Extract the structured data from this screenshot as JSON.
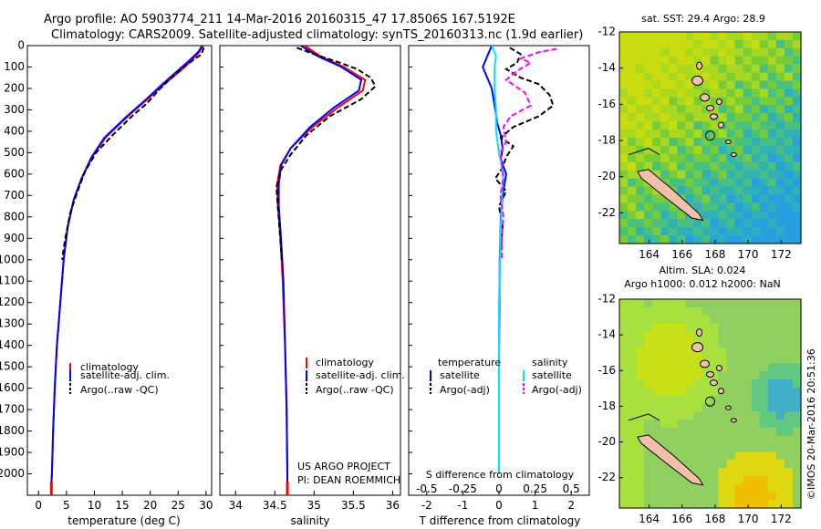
{
  "header": {
    "line1": "Argo profile: AO 5903774_211 14-Mar-2016 20160315_47 17.8506S 167.5192E",
    "line2": "Climatology: CARS2009. Satellite-adjusted climatology: synTS_20160313.nc (1.9d earlier)"
  },
  "colors": {
    "climatology": "#ff0000",
    "satellite": "#0000ff",
    "argo": "#000000",
    "salinity_satellite": "#00e5ff",
    "salinity_argo": "#ff00ff"
  },
  "chart_data": [
    {
      "type": "line",
      "name": "temperature-profile",
      "xlabel": "temperature (deg C)",
      "ylabel": "",
      "xlim": [
        -2,
        31
      ],
      "ylim": [
        2100,
        0
      ],
      "xticks": [
        "0",
        "5",
        "10",
        "15",
        "20",
        "25",
        "30"
      ],
      "yticks": [
        "0",
        "100",
        "200",
        "300",
        "400",
        "500",
        "600",
        "700",
        "800",
        "900",
        "1000",
        "1100",
        "1200",
        "1300",
        "1400",
        "1500",
        "1600",
        "1700",
        "1800",
        "1900",
        "2000"
      ],
      "legend": [
        "climatology",
        "satellite-adj. clim.",
        "Argo(..raw -QC)"
      ],
      "series": [
        {
          "name": "climatology",
          "style": "solid",
          "points": [
            [
              29.5,
              0
            ],
            [
              28.8,
              30
            ],
            [
              27.4,
              70
            ],
            [
              25.3,
              120
            ],
            [
              22.5,
              180
            ],
            [
              19.5,
              250
            ],
            [
              16,
              330
            ],
            [
              12,
              430
            ],
            [
              9.6,
              520
            ],
            [
              7.7,
              620
            ],
            [
              6.3,
              720
            ],
            [
              5.2,
              850
            ],
            [
              4.5,
              1000
            ],
            [
              3.9,
              1200
            ],
            [
              3.3,
              1400
            ],
            [
              2.9,
              1600
            ],
            [
              2.6,
              1800
            ],
            [
              2.4,
              2000
            ],
            [
              2.3,
              2050
            ]
          ]
        },
        {
          "name": "satellite-adj. clim.",
          "style": "solid",
          "points": [
            [
              29.3,
              0
            ],
            [
              28.6,
              30
            ],
            [
              27,
              70
            ],
            [
              24.8,
              120
            ],
            [
              22.2,
              180
            ],
            [
              19.3,
              250
            ],
            [
              15.8,
              330
            ],
            [
              11.8,
              430
            ],
            [
              9.5,
              520
            ],
            [
              7.7,
              620
            ],
            [
              6.3,
              720
            ],
            [
              5.2,
              850
            ],
            [
              4.5,
              1000
            ],
            [
              3.9,
              1200
            ],
            [
              3.3,
              1400
            ],
            [
              2.9,
              1600
            ],
            [
              2.6,
              1800
            ],
            [
              2.4,
              2000
            ],
            [
              2.3,
              2050
            ]
          ]
        },
        {
          "name": "Argo(..raw -QC)",
          "style": "dashed",
          "points": [
            [
              29.6,
              10
            ],
            [
              29.2,
              40
            ],
            [
              26.5,
              90
            ],
            [
              24.2,
              140
            ],
            [
              21.8,
              200
            ],
            [
              19.4,
              270
            ],
            [
              16.7,
              330
            ],
            [
              13.2,
              420
            ],
            [
              10.3,
              500
            ],
            [
              8.3,
              590
            ],
            [
              7,
              680
            ],
            [
              5.7,
              780
            ],
            [
              4.8,
              900
            ],
            [
              4.2,
              1000
            ]
          ]
        }
      ]
    },
    {
      "type": "line",
      "name": "salinity-profile",
      "xlabel": "salinity",
      "xlim": [
        33.8,
        36.1
      ],
      "ylim": [
        2100,
        0
      ],
      "xticks": [
        "34",
        "34.5",
        "35",
        "35.5",
        "36"
      ],
      "legend": [
        "climatology",
        "satellite-adj. clim.",
        "Argo(..raw -QC)"
      ],
      "annotations": [
        "US ARGO PROJECT",
        "PI: DEAN ROEMMICH"
      ],
      "series": [
        {
          "name": "climatology",
          "style": "solid",
          "points": [
            [
              34.88,
              0
            ],
            [
              35.08,
              50
            ],
            [
              35.38,
              100
            ],
            [
              35.65,
              160
            ],
            [
              35.62,
              210
            ],
            [
              35.3,
              290
            ],
            [
              34.98,
              380
            ],
            [
              34.7,
              480
            ],
            [
              34.57,
              560
            ],
            [
              34.53,
              650
            ],
            [
              34.54,
              750
            ],
            [
              34.57,
              900
            ],
            [
              34.6,
              1100
            ],
            [
              34.63,
              1400
            ],
            [
              34.65,
              1700
            ],
            [
              34.66,
              2000
            ],
            [
              34.66,
              2050
            ]
          ]
        },
        {
          "name": "satellite-adj. clim.",
          "style": "solid",
          "points": [
            [
              34.83,
              0
            ],
            [
              35.05,
              50
            ],
            [
              35.35,
              100
            ],
            [
              35.6,
              160
            ],
            [
              35.57,
              210
            ],
            [
              35.25,
              290
            ],
            [
              34.95,
              380
            ],
            [
              34.7,
              480
            ],
            [
              34.58,
              560
            ],
            [
              34.55,
              650
            ],
            [
              34.55,
              750
            ],
            [
              34.58,
              900
            ],
            [
              34.61,
              1100
            ],
            [
              34.63,
              1400
            ],
            [
              34.65,
              1700
            ],
            [
              34.66,
              2000
            ],
            [
              34.66,
              2050
            ]
          ]
        },
        {
          "name": "Argo(..raw -QC)",
          "style": "dashed",
          "points": [
            [
              34.78,
              10
            ],
            [
              35.0,
              40
            ],
            [
              35.33,
              80
            ],
            [
              35.55,
              110
            ],
            [
              35.72,
              150
            ],
            [
              35.78,
              190
            ],
            [
              35.6,
              250
            ],
            [
              35.2,
              330
            ],
            [
              34.9,
              420
            ],
            [
              34.7,
              510
            ],
            [
              34.58,
              580
            ],
            [
              34.52,
              660
            ],
            [
              34.54,
              760
            ],
            [
              34.57,
              900
            ],
            [
              34.59,
              1000
            ]
          ]
        }
      ]
    },
    {
      "type": "line",
      "name": "difference-profile",
      "xlabel": "T difference from climatology",
      "xlabel_top": "S difference from climatology",
      "xlim_T": [
        -2.5,
        2.5
      ],
      "xticks_T": [
        "-2",
        "-1",
        "0",
        "1",
        "2"
      ],
      "xticks_S": [
        "-0.5",
        "-0.25",
        "0",
        "0.25",
        "0.5"
      ],
      "ylim": [
        2100,
        0
      ],
      "legend_headers": [
        "temperature",
        "salinity"
      ],
      "legend": [
        "satellite",
        "Argo(-adj)",
        "satellite",
        "Argo(-adj)"
      ],
      "series": [
        {
          "name": "temperature satellite",
          "variable": "T",
          "style": "solid",
          "points": [
            [
              -0.2,
              0
            ],
            [
              -0.3,
              40
            ],
            [
              -0.45,
              100
            ],
            [
              -0.2,
              200
            ],
            [
              -0.1,
              300
            ],
            [
              -0.05,
              360
            ],
            [
              0.05,
              420
            ],
            [
              0.1,
              480
            ],
            [
              0.05,
              530
            ],
            [
              0.2,
              600
            ],
            [
              0.1,
              700
            ],
            [
              0.05,
              800
            ],
            [
              0.02,
              1000
            ],
            [
              0,
              1500
            ],
            [
              0,
              2000
            ]
          ]
        },
        {
          "name": "temperature Argo(-adj)",
          "variable": "T",
          "style": "dashed",
          "points": [
            [
              0.3,
              10
            ],
            [
              0.6,
              40
            ],
            [
              0.5,
              80
            ],
            [
              0.2,
              110
            ],
            [
              0.6,
              150
            ],
            [
              1.1,
              180
            ],
            [
              1.4,
              230
            ],
            [
              1.5,
              280
            ],
            [
              1.1,
              330
            ],
            [
              0.4,
              380
            ],
            [
              0.05,
              430
            ],
            [
              0.4,
              470
            ],
            [
              0.2,
              520
            ],
            [
              0.1,
              570
            ],
            [
              -0.1,
              620
            ],
            [
              0.2,
              680
            ],
            [
              0,
              750
            ],
            [
              0.1,
              850
            ],
            [
              0.02,
              1000
            ]
          ]
        },
        {
          "name": "salinity satellite",
          "variable": "S",
          "style": "solid",
          "points": [
            [
              -0.05,
              0
            ],
            [
              -0.02,
              50
            ],
            [
              -0.03,
              100
            ],
            [
              -0.03,
              200
            ],
            [
              -0.02,
              300
            ],
            [
              -0.02,
              400
            ],
            [
              0,
              500
            ],
            [
              0.03,
              600
            ],
            [
              0.02,
              700
            ],
            [
              0.01,
              900
            ],
            [
              0,
              1200
            ],
            [
              0,
              1500
            ],
            [
              0,
              2000
            ]
          ]
        },
        {
          "name": "salinity Argo(-adj)",
          "variable": "S",
          "style": "dashed",
          "points": [
            [
              0.4,
              15
            ],
            [
              0.28,
              30
            ],
            [
              0.15,
              60
            ],
            [
              0.22,
              80
            ],
            [
              0.12,
              120
            ],
            [
              0.05,
              160
            ],
            [
              0.18,
              220
            ],
            [
              0.22,
              280
            ],
            [
              0.08,
              330
            ],
            [
              0.03,
              380
            ],
            [
              0.05,
              450
            ],
            [
              0.01,
              500
            ],
            [
              0.02,
              560
            ],
            [
              0.03,
              620
            ],
            [
              0.01,
              700
            ],
            [
              0.03,
              800
            ],
            [
              0.02,
              900
            ],
            [
              0.02,
              1000
            ]
          ]
        }
      ]
    }
  ],
  "maps": {
    "top": {
      "title": "sat. SST: 29.4 Argo: 28.9",
      "xticks": [
        "164",
        "166",
        "168",
        "170",
        "172"
      ],
      "yticks": [
        "-12",
        "-14",
        "-16",
        "-18",
        "-20",
        "-22"
      ],
      "colors": [
        "#c8dc10",
        "#a8d820",
        "#78cc38",
        "#48c080",
        "#30b0b8",
        "#28a0e0"
      ]
    },
    "bottom": {
      "title1": "Altim. SLA: 0.024",
      "title2": "Argo h1000: 0.012 h2000: NaN",
      "xticks": [
        "164",
        "166",
        "168",
        "170",
        "172"
      ],
      "yticks": [
        "-12",
        "-14",
        "-16",
        "-18",
        "-20",
        "-22"
      ],
      "colors": [
        "#90d060",
        "#a8e040",
        "#c8e018",
        "#60c880",
        "#40b0c8",
        "#e0d810",
        "#f0c000"
      ]
    }
  },
  "credit": "©IMOS 20-Mar-2016 20:51:36"
}
